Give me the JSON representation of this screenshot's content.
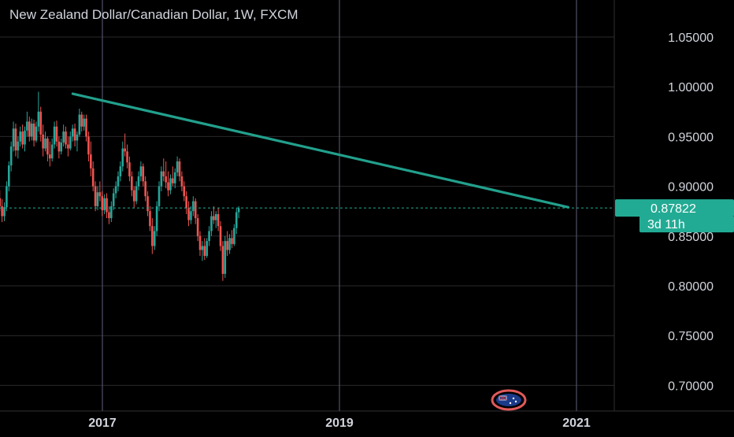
{
  "title": "New Zealand Dollar/Canadian Dollar, 1W, FXCM",
  "colors": {
    "background": "#000000",
    "grid": "#2a2a2e",
    "year_line": "#4a4a5e",
    "text": "#d1d4dc",
    "up": "#26a69a",
    "down": "#ef5350",
    "trendline": "#22a08c",
    "last_price": "#22ab94"
  },
  "price_label": {
    "value": "0.87822",
    "countdown": "3d 11h"
  },
  "flag_icon": "australian-flag-icon",
  "chart_data": {
    "type": "candlestick",
    "title": "New Zealand Dollar/Canadian Dollar, 1W, FXCM",
    "ylim": [
      0.685,
      1.085
    ],
    "xlim": [
      2016.0,
      2021.45
    ],
    "y_ticks": [
      "1.05000",
      "1.00000",
      "0.95000",
      "0.90000",
      "0.85000",
      "0.80000",
      "0.75000",
      "0.70000"
    ],
    "x_ticks": [
      {
        "label": "2017",
        "x": 2017.0
      },
      {
        "label": "2019",
        "x": 2019.0
      },
      {
        "label": "2021",
        "x": 2021.0
      }
    ],
    "last_price": 0.87822,
    "trendline": [
      [
        2016.75,
        0.993
      ],
      [
        2020.93,
        0.879
      ]
    ],
    "candles_x_start": 2016.0,
    "candles_x_step": 0.0192,
    "candles": [
      [
        0.923,
        0.928,
        0.89,
        0.901
      ],
      [
        0.901,
        0.906,
        0.872,
        0.878
      ],
      [
        0.878,
        0.902,
        0.87,
        0.895
      ],
      [
        0.895,
        0.904,
        0.878,
        0.884
      ],
      [
        0.884,
        0.899,
        0.866,
        0.872
      ],
      [
        0.872,
        0.881,
        0.862,
        0.876
      ],
      [
        0.876,
        0.892,
        0.87,
        0.888
      ],
      [
        0.888,
        0.896,
        0.875,
        0.88
      ],
      [
        0.88,
        0.887,
        0.864,
        0.87
      ],
      [
        0.87,
        0.884,
        0.865,
        0.879
      ],
      [
        0.879,
        0.905,
        0.875,
        0.9
      ],
      [
        0.9,
        0.925,
        0.895,
        0.921
      ],
      [
        0.921,
        0.945,
        0.915,
        0.94
      ],
      [
        0.94,
        0.965,
        0.935,
        0.958
      ],
      [
        0.958,
        0.963,
        0.93,
        0.936
      ],
      [
        0.936,
        0.95,
        0.928,
        0.945
      ],
      [
        0.945,
        0.96,
        0.94,
        0.955
      ],
      [
        0.955,
        0.962,
        0.938,
        0.942
      ],
      [
        0.942,
        0.96,
        0.935,
        0.956
      ],
      [
        0.956,
        0.975,
        0.95,
        0.965
      ],
      [
        0.965,
        0.97,
        0.945,
        0.95
      ],
      [
        0.95,
        0.968,
        0.946,
        0.963
      ],
      [
        0.963,
        0.967,
        0.94,
        0.946
      ],
      [
        0.946,
        0.965,
        0.944,
        0.96
      ],
      [
        0.96,
        0.995,
        0.955,
        0.975
      ],
      [
        0.975,
        0.98,
        0.945,
        0.952
      ],
      [
        0.952,
        0.962,
        0.93,
        0.938
      ],
      [
        0.938,
        0.955,
        0.935,
        0.948
      ],
      [
        0.948,
        0.95,
        0.925,
        0.932
      ],
      [
        0.932,
        0.945,
        0.92,
        0.928
      ],
      [
        0.928,
        0.948,
        0.925,
        0.942
      ],
      [
        0.942,
        0.965,
        0.938,
        0.96
      ],
      [
        0.96,
        0.966,
        0.94,
        0.945
      ],
      [
        0.945,
        0.95,
        0.928,
        0.935
      ],
      [
        0.935,
        0.948,
        0.932,
        0.944
      ],
      [
        0.944,
        0.962,
        0.94,
        0.955
      ],
      [
        0.955,
        0.96,
        0.938,
        0.942
      ],
      [
        0.942,
        0.95,
        0.93,
        0.938
      ],
      [
        0.938,
        0.955,
        0.936,
        0.95
      ],
      [
        0.95,
        0.962,
        0.945,
        0.958
      ],
      [
        0.958,
        0.963,
        0.94,
        0.946
      ],
      [
        0.946,
        0.955,
        0.935,
        0.952
      ],
      [
        0.952,
        0.978,
        0.95,
        0.972
      ],
      [
        0.972,
        0.975,
        0.955,
        0.96
      ],
      [
        0.96,
        0.972,
        0.956,
        0.968
      ],
      [
        0.968,
        0.972,
        0.945,
        0.95
      ],
      [
        0.95,
        0.955,
        0.925,
        0.932
      ],
      [
        0.932,
        0.945,
        0.91,
        0.918
      ],
      [
        0.918,
        0.925,
        0.895,
        0.9
      ],
      [
        0.9,
        0.905,
        0.875,
        0.88
      ],
      [
        0.88,
        0.9,
        0.876,
        0.894
      ],
      [
        0.894,
        0.905,
        0.885,
        0.89
      ],
      [
        0.89,
        0.895,
        0.87,
        0.876
      ],
      [
        0.876,
        0.892,
        0.872,
        0.888
      ],
      [
        0.888,
        0.893,
        0.868,
        0.874
      ],
      [
        0.874,
        0.88,
        0.862,
        0.868
      ],
      [
        0.868,
        0.885,
        0.864,
        0.88
      ],
      [
        0.88,
        0.898,
        0.876,
        0.893
      ],
      [
        0.893,
        0.905,
        0.888,
        0.9
      ],
      [
        0.9,
        0.915,
        0.895,
        0.91
      ],
      [
        0.91,
        0.925,
        0.905,
        0.92
      ],
      [
        0.92,
        0.945,
        0.915,
        0.938
      ],
      [
        0.938,
        0.953,
        0.93,
        0.935
      ],
      [
        0.935,
        0.942,
        0.918,
        0.924
      ],
      [
        0.924,
        0.93,
        0.905,
        0.91
      ],
      [
        0.91,
        0.915,
        0.89,
        0.896
      ],
      [
        0.896,
        0.9,
        0.878,
        0.885
      ],
      [
        0.885,
        0.905,
        0.882,
        0.9
      ],
      [
        0.9,
        0.915,
        0.896,
        0.91
      ],
      [
        0.91,
        0.925,
        0.905,
        0.92
      ],
      [
        0.92,
        0.923,
        0.9,
        0.905
      ],
      [
        0.905,
        0.91,
        0.885,
        0.89
      ],
      [
        0.89,
        0.895,
        0.87,
        0.875
      ],
      [
        0.875,
        0.88,
        0.855,
        0.86
      ],
      [
        0.86,
        0.868,
        0.832,
        0.84
      ],
      [
        0.84,
        0.86,
        0.836,
        0.855
      ],
      [
        0.855,
        0.885,
        0.85,
        0.88
      ],
      [
        0.88,
        0.905,
        0.875,
        0.9
      ],
      [
        0.9,
        0.92,
        0.895,
        0.915
      ],
      [
        0.915,
        0.928,
        0.905,
        0.91
      ],
      [
        0.91,
        0.925,
        0.898,
        0.904
      ],
      [
        0.904,
        0.915,
        0.89,
        0.896
      ],
      [
        0.896,
        0.912,
        0.892,
        0.908
      ],
      [
        0.908,
        0.92,
        0.9,
        0.903
      ],
      [
        0.903,
        0.918,
        0.898,
        0.914
      ],
      [
        0.914,
        0.93,
        0.91,
        0.925
      ],
      [
        0.925,
        0.928,
        0.905,
        0.91
      ],
      [
        0.91,
        0.915,
        0.895,
        0.9
      ],
      [
        0.9,
        0.905,
        0.885,
        0.89
      ],
      [
        0.89,
        0.895,
        0.872,
        0.878
      ],
      [
        0.878,
        0.885,
        0.86,
        0.866
      ],
      [
        0.866,
        0.88,
        0.862,
        0.875
      ],
      [
        0.875,
        0.89,
        0.87,
        0.885
      ],
      [
        0.885,
        0.888,
        0.862,
        0.868
      ],
      [
        0.868,
        0.872,
        0.845,
        0.85
      ],
      [
        0.85,
        0.855,
        0.83,
        0.836
      ],
      [
        0.836,
        0.845,
        0.825,
        0.84
      ],
      [
        0.84,
        0.848,
        0.826,
        0.83
      ],
      [
        0.83,
        0.848,
        0.828,
        0.845
      ],
      [
        0.845,
        0.86,
        0.84,
        0.855
      ],
      [
        0.855,
        0.875,
        0.85,
        0.87
      ],
      [
        0.87,
        0.88,
        0.862,
        0.866
      ],
      [
        0.866,
        0.875,
        0.858,
        0.872
      ],
      [
        0.872,
        0.878,
        0.855,
        0.86
      ],
      [
        0.86,
        0.865,
        0.835,
        0.84
      ],
      [
        0.84,
        0.845,
        0.805,
        0.812
      ],
      [
        0.812,
        0.85,
        0.808,
        0.845
      ],
      [
        0.845,
        0.855,
        0.83,
        0.836
      ],
      [
        0.836,
        0.852,
        0.832,
        0.848
      ],
      [
        0.848,
        0.856,
        0.838,
        0.842
      ],
      [
        0.842,
        0.862,
        0.84,
        0.858
      ],
      [
        0.858,
        0.878,
        0.852,
        0.874
      ],
      [
        0.874,
        0.88,
        0.868,
        0.878
      ]
    ]
  }
}
